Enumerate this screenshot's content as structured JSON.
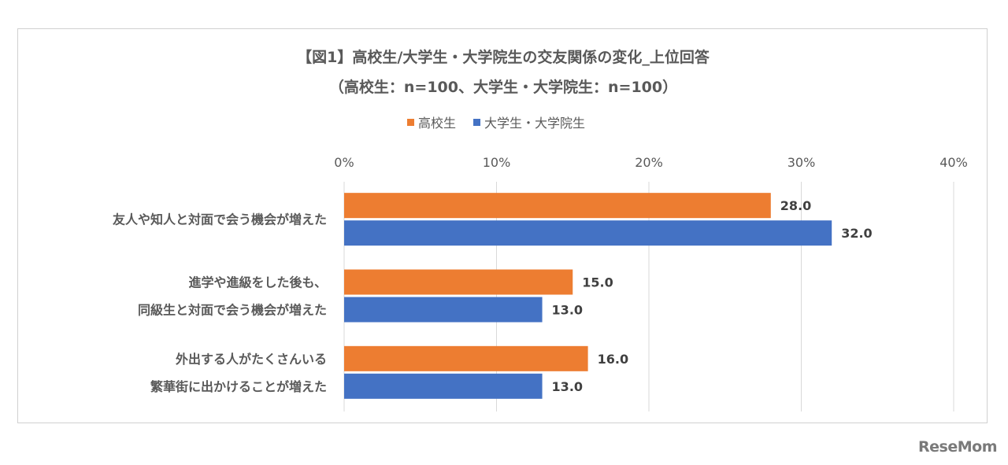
{
  "chart_data": {
    "type": "bar",
    "orientation": "horizontal",
    "title": "【図1】高校生/大学生・大学院生の交友関係の変化_上位回答",
    "subtitle": "（高校生：n=100、大学生・大学院生：n=100）",
    "categories": [
      [
        "友人や知人と対面で会う機会が増えた"
      ],
      [
        "進学や進級をした後も、",
        "同級生と対面で会う機会が増えた"
      ],
      [
        "外出する人がたくさんいる",
        "繁華街に出かけることが増えた"
      ]
    ],
    "series": [
      {
        "name": "高校生",
        "color": "#ED7D31",
        "values": [
          28.0,
          15.0,
          16.0
        ],
        "labels": [
          "28.0",
          "15.0",
          "16.0"
        ]
      },
      {
        "name": "大学生・大学院生",
        "color": "#4472C4",
        "values": [
          32.0,
          13.0,
          13.0
        ],
        "labels": [
          "32.0",
          "13.0",
          "13.0"
        ]
      }
    ],
    "xlim": [
      0,
      40
    ],
    "ticks": [
      0,
      10,
      20,
      30,
      40
    ],
    "tick_labels": [
      "0%",
      "10%",
      "20%",
      "30%",
      "40%"
    ],
    "grid": true,
    "legend_position": "top",
    "axis_position": "top"
  },
  "watermark": "ReseMom"
}
